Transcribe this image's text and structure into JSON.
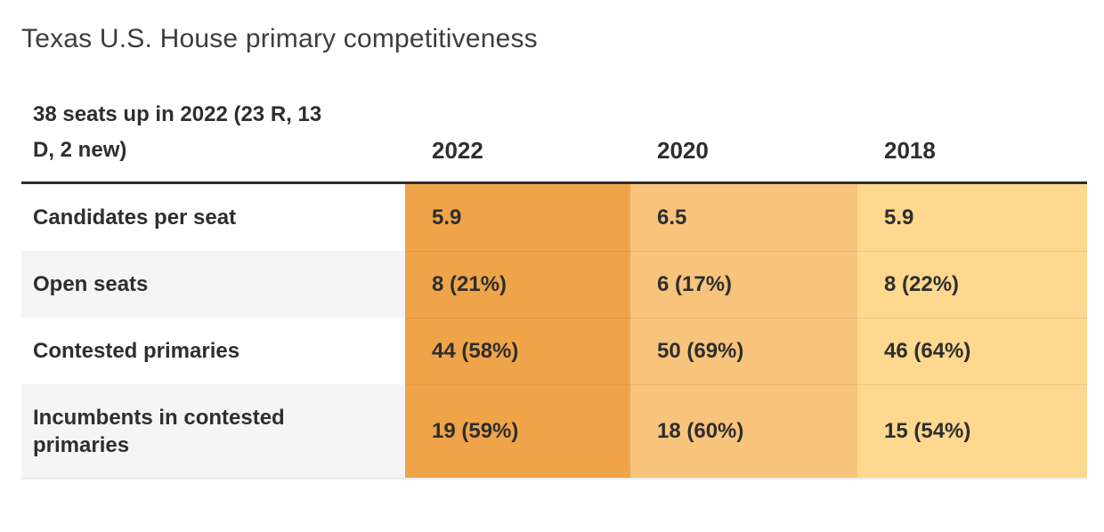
{
  "title": "Texas U.S. House primary competitiveness",
  "chart_data": {
    "type": "table",
    "title": "Texas U.S. House primary competitiveness",
    "corner_label": "38 seats up in 2022 (23 R, 13 D, 2 new)",
    "columns": [
      "2022",
      "2020",
      "2018"
    ],
    "rows": [
      {
        "label": "Candidates per seat",
        "values": [
          "5.9",
          "6.5",
          "5.9"
        ]
      },
      {
        "label": "Open seats",
        "values": [
          "8 (21%)",
          "6 (17%)",
          "8 (22%)"
        ]
      },
      {
        "label": "Contested primaries",
        "values": [
          "44 (58%)",
          "50 (69%)",
          "46 (64%)"
        ]
      },
      {
        "label": "Incumbents in contested primaries",
        "values": [
          "19 (59%)",
          "18 (60%)",
          "15 (54%)"
        ]
      }
    ],
    "column_colors": {
      "2022": "#f0a44a",
      "2020": "#f8c47c",
      "2018": "#fdd88e"
    },
    "style_colors": {
      "header_rule": "#2e2e2e",
      "zebra_row": "#f5f5f5",
      "text": "#2e2e2e"
    }
  }
}
